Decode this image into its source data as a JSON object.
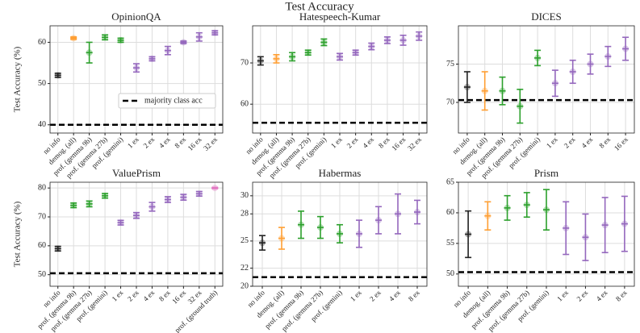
{
  "title": "Test Accuracy",
  "chart_data": [
    {
      "type": "errorbar",
      "title": "OpinionQA",
      "ylabel": "Test Accuracy (%)",
      "categories": [
        "no info",
        "demog. (all)",
        "prof. (gemma 9b)",
        "prof. (gemma 27b)",
        "prof. (gemini)",
        "1 ex",
        "2 ex",
        "4 ex",
        "8 ex",
        "16 ex",
        "32 ex"
      ],
      "values": [
        52,
        61,
        57.5,
        61.2,
        60.5,
        53.8,
        56,
        58,
        60,
        61.3,
        62.3
      ],
      "errors": [
        0.5,
        0.3,
        2.5,
        0.6,
        0.5,
        1,
        0.5,
        1,
        0.3,
        1,
        0.5
      ],
      "colors": [
        "#222222",
        "#ff9f33",
        "#2ca02c",
        "#2ca02c",
        "#2ca02c",
        "#9467bd",
        "#9467bd",
        "#9467bd",
        "#9467bd",
        "#9467bd",
        "#9467bd"
      ],
      "majority": 40,
      "legend_label": "majority class acc",
      "ylim": [
        38,
        64
      ],
      "yticks": [
        40,
        50,
        60
      ],
      "grid": true
    },
    {
      "type": "errorbar",
      "title": "Hatespeech-Kumar",
      "categories": [
        "no info",
        "demog. (all)",
        "prof. (gemma 9b)",
        "prof. (gemma 27b)",
        "prof. (gemini)",
        "1 ex",
        "2 ex",
        "4 ex",
        "8 ex",
        "16 ex",
        "32 ex"
      ],
      "values": [
        70.5,
        71,
        71.5,
        72.5,
        75,
        71.5,
        72.5,
        74,
        75.5,
        75.5,
        76.5
      ],
      "errors": [
        1,
        1,
        1,
        0.6,
        0.8,
        0.8,
        0.6,
        0.8,
        0.8,
        1.2,
        1
      ],
      "colors": [
        "#222222",
        "#ff9f33",
        "#2ca02c",
        "#2ca02c",
        "#2ca02c",
        "#9467bd",
        "#9467bd",
        "#9467bd",
        "#9467bd",
        "#9467bd",
        "#9467bd"
      ],
      "majority": 55.5,
      "ylim": [
        53,
        79
      ],
      "yticks": [
        60,
        70
      ],
      "grid": true
    },
    {
      "type": "errorbar",
      "title": "DICES",
      "categories": [
        "no info",
        "demog. (all)",
        "prof. (gemma 9b)",
        "prof. (gemma 27b)",
        "prof. (gemini)",
        "1 ex",
        "2 ex",
        "4 ex",
        "8 ex",
        "16 ex"
      ],
      "values": [
        72,
        71.5,
        71.5,
        69.5,
        75.8,
        72.5,
        74,
        75,
        76,
        77
      ],
      "errors": [
        2,
        2.5,
        1.8,
        2.2,
        1,
        1.7,
        1.5,
        1.3,
        1.3,
        1.5
      ],
      "colors": [
        "#222222",
        "#ff9f33",
        "#2ca02c",
        "#2ca02c",
        "#2ca02c",
        "#9467bd",
        "#9467bd",
        "#9467bd",
        "#9467bd",
        "#9467bd"
      ],
      "majority": 70.3,
      "ylim": [
        66,
        80
      ],
      "yticks": [
        70,
        75
      ],
      "grid": true
    },
    {
      "type": "errorbar",
      "title": "ValuePrism",
      "ylabel": "Test Accuracy (%)",
      "categories": [
        "no info",
        "prof. (gemma 9b)",
        "prof. (gemma 27b)",
        "prof. (gemini)",
        "1 ex",
        "2 ex",
        "4 ex",
        "8 ex",
        "16 ex",
        "32 ex",
        "prof. (ground truth)"
      ],
      "values": [
        59,
        74,
        74.5,
        77.3,
        68,
        70.5,
        73.5,
        76,
        76.8,
        78,
        80
      ],
      "errors": [
        0.8,
        0.8,
        1,
        0.8,
        0.8,
        1,
        1.5,
        1,
        1,
        0.8,
        0.2
      ],
      "colors": [
        "#222222",
        "#2ca02c",
        "#2ca02c",
        "#2ca02c",
        "#9467bd",
        "#9467bd",
        "#9467bd",
        "#9467bd",
        "#9467bd",
        "#9467bd",
        "#e377c2"
      ],
      "majority": 50.5,
      "ylim": [
        46,
        82
      ],
      "yticks": [
        50,
        60,
        70,
        80
      ],
      "grid": true
    },
    {
      "type": "errorbar",
      "title": "Habermas",
      "categories": [
        "no info",
        "demog. (all)",
        "prof. (gemma 9b)",
        "prof. (gemma 27b)",
        "prof. (gemini)",
        "1 ex",
        "2 ex",
        "4 ex",
        "8 ex"
      ],
      "values": [
        24.8,
        25.3,
        26.8,
        26.5,
        25.8,
        25.8,
        27.3,
        28,
        28.2
      ],
      "errors": [
        0.8,
        1.2,
        1.5,
        1.2,
        1,
        1.5,
        1.5,
        2.2,
        1.3
      ],
      "colors": [
        "#222222",
        "#ff9f33",
        "#2ca02c",
        "#2ca02c",
        "#2ca02c",
        "#9467bd",
        "#9467bd",
        "#9467bd",
        "#9467bd"
      ],
      "majority": 21,
      "ylim": [
        20,
        31.5
      ],
      "yticks": [
        20,
        22,
        25,
        28,
        30
      ],
      "grid": true
    },
    {
      "type": "errorbar",
      "title": "Prism",
      "categories": [
        "no info",
        "demog. (all)",
        "prof. (gemma 9b)",
        "prof. (gemma 27b)",
        "prof. (gemini)",
        "1 ex",
        "2 ex",
        "4 ex",
        "8 ex"
      ],
      "values": [
        56.5,
        59.5,
        60.8,
        61.3,
        60.5,
        57.5,
        56,
        58,
        58.2
      ],
      "errors": [
        3.8,
        2.3,
        2,
        2,
        3.3,
        4.3,
        3.8,
        4.5,
        4.5
      ],
      "colors": [
        "#222222",
        "#ff9f33",
        "#2ca02c",
        "#2ca02c",
        "#2ca02c",
        "#9467bd",
        "#9467bd",
        "#9467bd",
        "#9467bd"
      ],
      "majority": 50.3,
      "ylim": [
        48,
        65
      ],
      "yticks": [
        50,
        55,
        60,
        65
      ],
      "grid": true
    }
  ]
}
